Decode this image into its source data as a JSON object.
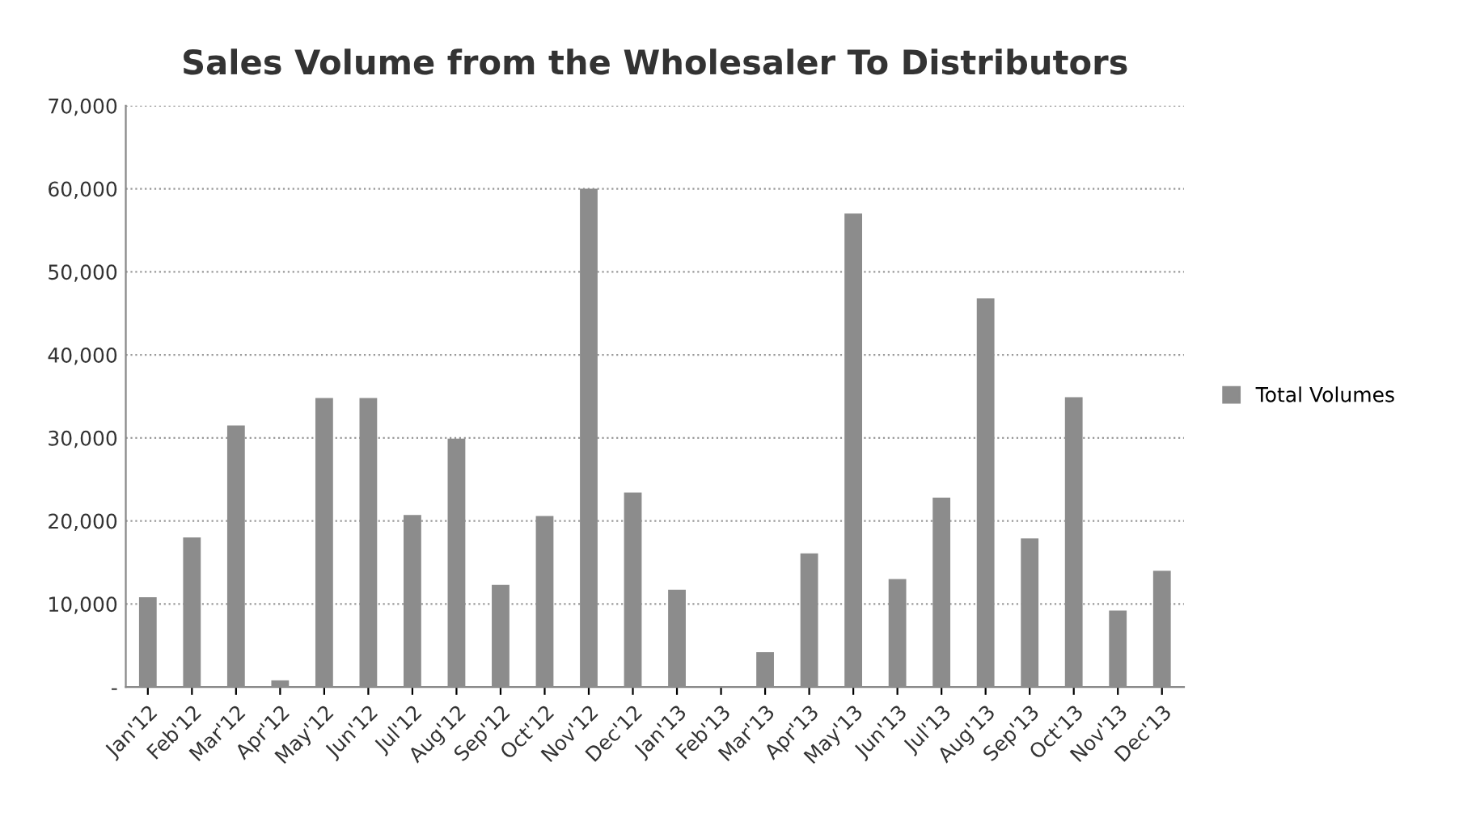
{
  "chart_data": {
    "type": "bar",
    "title": "Sales Volume from the Wholesaler To Distributors",
    "categories": [
      "Jan'12",
      "Feb'12",
      "Mar'12",
      "Apr'12",
      "May'12",
      "Jun'12",
      "Jul'12",
      "Aug'12",
      "Sep'12",
      "Oct'12",
      "Nov'12",
      "Dec'12",
      "Jan'13",
      "Feb'13",
      "Mar'13",
      "Apr'13",
      "May'13",
      "Jun'13",
      "Jul'13",
      "Aug'13",
      "Sep'13",
      "Oct'13",
      "Nov'13",
      "Dec'13"
    ],
    "series": [
      {
        "name": "Total Volumes",
        "color": "#8c8c8c",
        "values": [
          10800,
          18000,
          31500,
          800,
          34800,
          34800,
          20700,
          29900,
          12300,
          20600,
          60000,
          23400,
          11700,
          0,
          4200,
          16100,
          57000,
          13000,
          22800,
          46800,
          17900,
          34900,
          9200,
          14000
        ]
      }
    ],
    "ylim": [
      0,
      70000
    ],
    "yticks": [
      {
        "value": 0,
        "label": "-"
      },
      {
        "value": 10000,
        "label": "10,000"
      },
      {
        "value": 20000,
        "label": "20,000"
      },
      {
        "value": 30000,
        "label": "30,000"
      },
      {
        "value": 40000,
        "label": "40,000"
      },
      {
        "value": 50000,
        "label": "50,000"
      },
      {
        "value": 60000,
        "label": "60,000"
      },
      {
        "value": 70000,
        "label": "70,000"
      }
    ],
    "grid": "y",
    "legend": "right"
  }
}
